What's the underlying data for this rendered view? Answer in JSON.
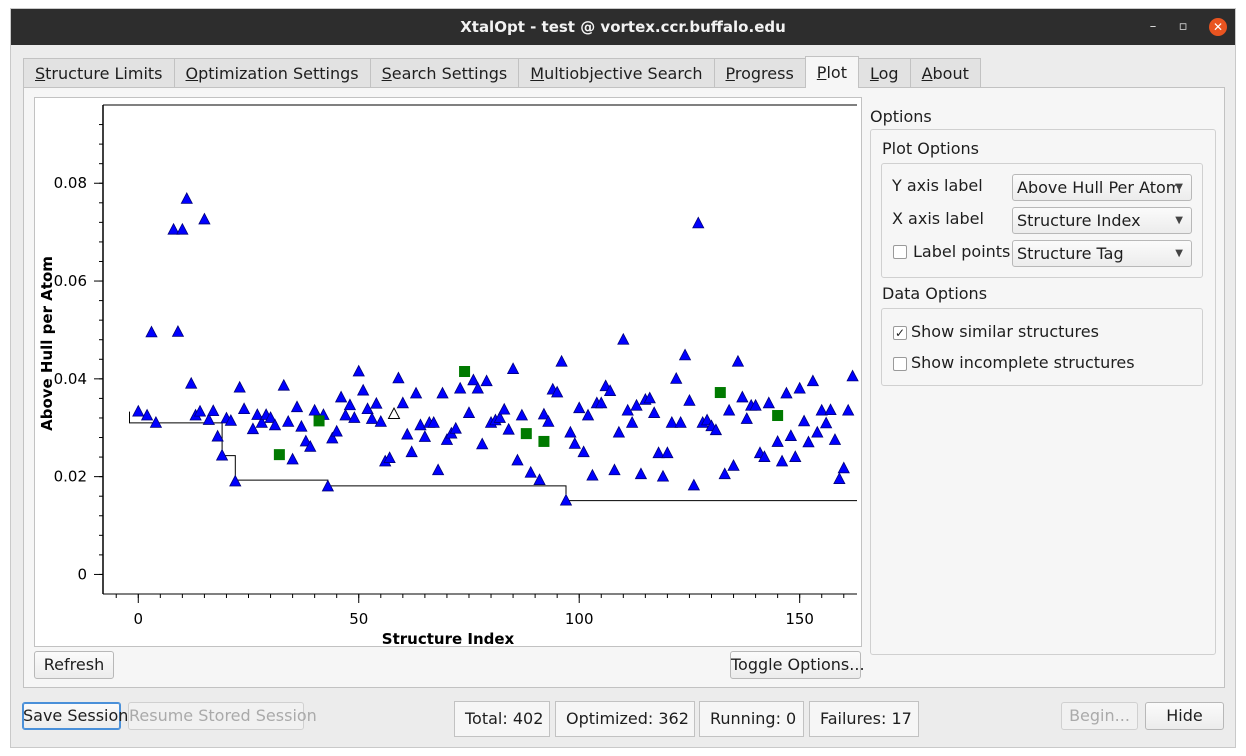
{
  "window": {
    "title": "XtalOpt - test @ vortex.ccr.buffalo.edu",
    "minimize": "–",
    "maximize": "▫",
    "close": "✕"
  },
  "tabs": [
    {
      "label": "Structure Limits",
      "active": false
    },
    {
      "label": "Optimization Settings",
      "active": false
    },
    {
      "label": "Search Settings",
      "active": false
    },
    {
      "label": "Multiobjective Search",
      "active": false
    },
    {
      "label": "Progress",
      "active": false
    },
    {
      "label": "Plot",
      "active": true
    },
    {
      "label": "Log",
      "active": false
    },
    {
      "label": "About",
      "active": false
    }
  ],
  "plot": {
    "refresh_label": "Refresh",
    "toggle_options_label": "Toggle Options...",
    "chart_data": {
      "type": "scatter",
      "xlabel": "Structure Index",
      "ylabel": "Above Hull per Atom",
      "xlim": [
        -8,
        163
      ],
      "ylim": [
        -0.004,
        0.096
      ],
      "xticks": [
        0,
        50,
        100,
        150
      ],
      "yticks": [
        0,
        0.02,
        0.04,
        0.06,
        0.08
      ],
      "ytick_labels": [
        "0",
        "0.02",
        "0.04",
        "0.06",
        "0.08"
      ],
      "grid": false,
      "colors": {
        "triangle": "#0000ff",
        "square": "#007a00",
        "open": "#ffffff",
        "hull": "#000000"
      },
      "series": [
        {
          "marker": "triangle",
          "points": [
            [
              0,
              0.0333
            ],
            [
              2,
              0.0325
            ],
            [
              3,
              0.0495
            ],
            [
              4,
              0.031
            ],
            [
              8,
              0.0705
            ],
            [
              9,
              0.0496
            ],
            [
              10,
              0.0705
            ],
            [
              11,
              0.0768
            ],
            [
              12,
              0.039
            ],
            [
              13,
              0.0325
            ],
            [
              14,
              0.0333
            ],
            [
              15,
              0.0726
            ],
            [
              16,
              0.0316
            ],
            [
              17,
              0.0334
            ],
            [
              18,
              0.0282
            ],
            [
              19,
              0.0243
            ],
            [
              20,
              0.0319
            ],
            [
              21,
              0.0314
            ],
            [
              22,
              0.019
            ],
            [
              23,
              0.0382
            ],
            [
              24,
              0.0338
            ],
            [
              26,
              0.0297
            ],
            [
              27,
              0.0326
            ],
            [
              28,
              0.031
            ],
            [
              29,
              0.0326
            ],
            [
              30,
              0.032
            ],
            [
              31,
              0.0305
            ],
            [
              33,
              0.0386
            ],
            [
              34,
              0.0312
            ],
            [
              35,
              0.0235
            ],
            [
              36,
              0.0342
            ],
            [
              37,
              0.0302
            ],
            [
              38,
              0.0272
            ],
            [
              39,
              0.0261
            ],
            [
              40,
              0.0335
            ],
            [
              42,
              0.0326
            ],
            [
              43,
              0.018
            ],
            [
              44,
              0.0278
            ],
            [
              45,
              0.0292
            ],
            [
              46,
              0.0362
            ],
            [
              47,
              0.0325
            ],
            [
              48,
              0.0346
            ],
            [
              49,
              0.032
            ],
            [
              50,
              0.0415
            ],
            [
              51,
              0.0376
            ],
            [
              52,
              0.0338
            ],
            [
              53,
              0.0318
            ],
            [
              54,
              0.0349
            ],
            [
              55,
              0.0312
            ],
            [
              56,
              0.0231
            ],
            [
              57,
              0.0238
            ],
            [
              59,
              0.0401
            ],
            [
              60,
              0.035
            ],
            [
              61,
              0.0286
            ],
            [
              62,
              0.025
            ],
            [
              63,
              0.037
            ],
            [
              64,
              0.0305
            ],
            [
              65,
              0.0281
            ],
            [
              66,
              0.031
            ],
            [
              67,
              0.031
            ],
            [
              68,
              0.0213
            ],
            [
              69,
              0.037
            ],
            [
              70,
              0.0275
            ],
            [
              71,
              0.0288
            ],
            [
              72,
              0.0298
            ],
            [
              73,
              0.038
            ],
            [
              75,
              0.033
            ],
            [
              76,
              0.0397
            ],
            [
              77,
              0.038
            ],
            [
              78,
              0.0266
            ],
            [
              79,
              0.0395
            ],
            [
              80,
              0.031
            ],
            [
              81,
              0.0315
            ],
            [
              82,
              0.032
            ],
            [
              83,
              0.0337
            ],
            [
              84,
              0.0296
            ],
            [
              85,
              0.042
            ],
            [
              86,
              0.0233
            ],
            [
              87,
              0.0325
            ],
            [
              89,
              0.0208
            ],
            [
              91,
              0.0193
            ],
            [
              92,
              0.0327
            ],
            [
              93,
              0.0312
            ],
            [
              94,
              0.0378
            ],
            [
              95,
              0.0372
            ],
            [
              96,
              0.0435
            ],
            [
              97,
              0.0151
            ],
            [
              98,
              0.029
            ],
            [
              99,
              0.0267
            ],
            [
              100,
              0.034
            ],
            [
              101,
              0.025
            ],
            [
              102,
              0.0325
            ],
            [
              103,
              0.0202
            ],
            [
              104,
              0.035
            ],
            [
              105,
              0.035
            ],
            [
              106,
              0.0385
            ],
            [
              107,
              0.0375
            ],
            [
              108,
              0.0213
            ],
            [
              109,
              0.029
            ],
            [
              110,
              0.048
            ],
            [
              111,
              0.0335
            ],
            [
              112,
              0.031
            ],
            [
              113,
              0.0345
            ],
            [
              114,
              0.0205
            ],
            [
              115,
              0.0357
            ],
            [
              116,
              0.036
            ],
            [
              117,
              0.033
            ],
            [
              118,
              0.0248
            ],
            [
              119,
              0.02
            ],
            [
              120,
              0.0248
            ],
            [
              121,
              0.031
            ],
            [
              122,
              0.04
            ],
            [
              123,
              0.031
            ],
            [
              124,
              0.0448
            ],
            [
              125,
              0.0355
            ],
            [
              126,
              0.0182
            ],
            [
              127,
              0.0718
            ],
            [
              128,
              0.031
            ],
            [
              129,
              0.0315
            ],
            [
              130,
              0.0303
            ],
            [
              131,
              0.0295
            ],
            [
              133,
              0.0205
            ],
            [
              134,
              0.0335
            ],
            [
              135,
              0.0222
            ],
            [
              136,
              0.0435
            ],
            [
              137,
              0.0362
            ],
            [
              138,
              0.0318
            ],
            [
              139,
              0.0345
            ],
            [
              140,
              0.0345
            ],
            [
              141,
              0.0248
            ],
            [
              142,
              0.024
            ],
            [
              143,
              0.035
            ],
            [
              145,
              0.0271
            ],
            [
              146,
              0.0231
            ],
            [
              147,
              0.037
            ],
            [
              148,
              0.0283
            ],
            [
              149,
              0.024
            ],
            [
              150,
              0.038
            ],
            [
              151,
              0.0313
            ],
            [
              152,
              0.027
            ],
            [
              153,
              0.0395
            ],
            [
              154,
              0.029
            ],
            [
              155,
              0.0335
            ],
            [
              156,
              0.0309
            ],
            [
              157,
              0.0336
            ],
            [
              158,
              0.0275
            ],
            [
              159,
              0.0195
            ],
            [
              160,
              0.0217
            ],
            [
              161,
              0.0335
            ],
            [
              162,
              0.0405
            ]
          ]
        },
        {
          "marker": "square",
          "points": [
            [
              32,
              0.0245
            ],
            [
              41,
              0.0314
            ],
            [
              74,
              0.0415
            ],
            [
              88,
              0.0288
            ],
            [
              92,
              0.0272
            ],
            [
              132,
              0.0372
            ],
            [
              145,
              0.0325
            ]
          ]
        },
        {
          "marker": "open-triangle",
          "points": [
            [
              58,
              0.0328
            ]
          ]
        },
        {
          "marker": "hull-line",
          "points": [
            [
              -2,
              0.0333
            ],
            [
              -2,
              0.031
            ],
            [
              19,
              0.031
            ],
            [
              19,
              0.0243
            ],
            [
              22,
              0.0243
            ],
            [
              22,
              0.0193
            ],
            [
              43,
              0.0193
            ],
            [
              43,
              0.0181
            ],
            [
              97,
              0.0181
            ],
            [
              97,
              0.0151
            ],
            [
              163,
              0.0151
            ]
          ]
        }
      ]
    }
  },
  "options": {
    "label": "Options",
    "plot_options": {
      "title": "Plot Options",
      "y_axis_label": "Y axis label",
      "y_axis_value": "Above Hull Per Atom",
      "x_axis_label": "X axis label",
      "x_axis_value": "Structure Index",
      "label_points": "Label points",
      "label_points_value": "Structure Tag"
    },
    "data_options": {
      "title": "Data Options",
      "show_similar": "Show similar structures",
      "show_similar_checked": "✓",
      "show_incomplete": "Show incomplete structures"
    }
  },
  "bottom": {
    "save_session": "Save Session",
    "resume_session": "Resume Stored Session",
    "total": "Total:  402",
    "optimized": "Optimized:  362",
    "running": "Running:  0",
    "failures": "Failures:  17",
    "begin": "Begin...",
    "hide": "Hide"
  }
}
